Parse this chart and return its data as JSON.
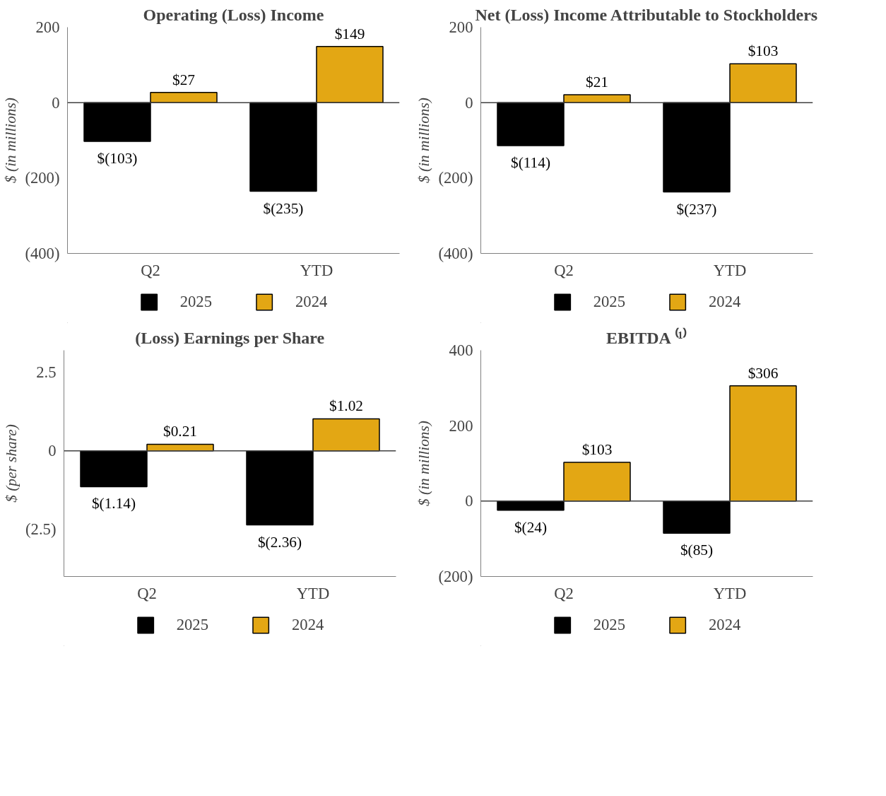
{
  "chart_data": [
    {
      "type": "bar",
      "title": "Operating (Loss) Income",
      "ylabel": "$ (in millions)",
      "categories": [
        "Q2",
        "YTD"
      ],
      "series": [
        {
          "name": "2025",
          "color": "#000000",
          "values": [
            -103,
            -235
          ],
          "value_labels": [
            "$(103)",
            "$(235)"
          ]
        },
        {
          "name": "2024",
          "color": "#e3a714",
          "values": [
            27,
            149
          ],
          "value_labels": [
            "$27",
            "$149"
          ]
        }
      ],
      "ylim": [
        -400,
        200
      ],
      "yticks": [
        {
          "value": -400,
          "label": "(400)"
        },
        {
          "value": -200,
          "label": "(200)"
        },
        0,
        200
      ],
      "ref_lines": [
        {
          "axis": "y",
          "value": 0
        }
      ],
      "grid": false,
      "legend": "bottom"
    },
    {
      "type": "bar",
      "title": "Net (Loss) Income Attributable to Stockholders",
      "ylabel": "$ (in millions)",
      "categories": [
        "Q2",
        "YTD"
      ],
      "series": [
        {
          "name": "2025",
          "color": "#000000",
          "values": [
            -114,
            -237
          ],
          "value_labels": [
            "$(114)",
            "$(237)"
          ]
        },
        {
          "name": "2024",
          "color": "#e3a714",
          "values": [
            21,
            103
          ],
          "value_labels": [
            "$21",
            "$103"
          ]
        }
      ],
      "ylim": [
        -400,
        200
      ],
      "yticks": [
        {
          "value": -400,
          "label": "(400)"
        },
        {
          "value": -200,
          "label": "(200)"
        },
        0,
        200
      ],
      "ref_lines": [
        {
          "axis": "y",
          "value": 0
        }
      ],
      "grid": false,
      "legend": "bottom"
    },
    {
      "type": "bar",
      "title": "(Loss) Earnings per Share",
      "ylabel": "$ (per share)",
      "categories": [
        "Q2",
        "YTD"
      ],
      "series": [
        {
          "name": "2025",
          "color": "#000000",
          "values": [
            -1.14,
            -2.36
          ],
          "value_labels": [
            "$(1.14)",
            "$(2.36)"
          ]
        },
        {
          "name": "2024",
          "color": "#e3a714",
          "values": [
            0.21,
            1.02
          ],
          "value_labels": [
            "$0.21",
            "$1.02"
          ]
        }
      ],
      "ylim": [
        -4,
        3.2
      ],
      "yticks": [
        {
          "value": -2.5,
          "label": "(2.5)"
        },
        0,
        2.5
      ],
      "ref_lines": [
        {
          "axis": "y",
          "value": 0
        }
      ],
      "grid": false,
      "legend": "bottom"
    },
    {
      "type": "bar",
      "title": "EBITDA ⁽¹⁾",
      "ylabel": "$ (in millions)",
      "categories": [
        "Q2",
        "YTD"
      ],
      "series": [
        {
          "name": "2025",
          "color": "#000000",
          "values": [
            -24,
            -85
          ],
          "value_labels": [
            "$(24)",
            "$(85)"
          ]
        },
        {
          "name": "2024",
          "color": "#e3a714",
          "values": [
            103,
            306
          ],
          "value_labels": [
            "$103",
            "$306"
          ]
        }
      ],
      "ylim": [
        -200,
        400
      ],
      "yticks": [
        {
          "value": -200,
          "label": "(200)"
        },
        0,
        200,
        400
      ],
      "ref_lines": [
        {
          "axis": "y",
          "value": 0
        }
      ],
      "grid": false,
      "legend": "bottom"
    }
  ]
}
